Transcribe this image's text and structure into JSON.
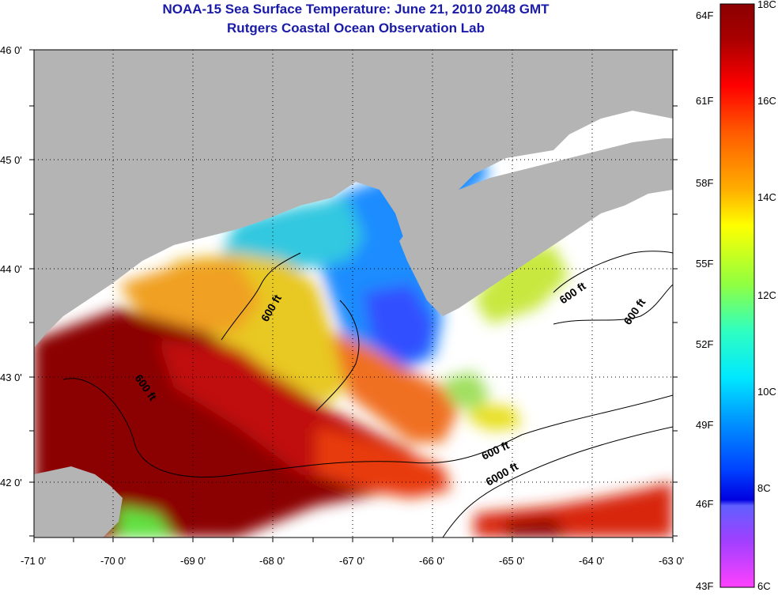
{
  "title": "NOAA-15 Sea Surface Temperature:  June 21, 2010 2048 GMT",
  "subtitle": "Rutgers Coastal Ocean Observation Lab",
  "map": {
    "lat_ticks": [
      "46 0'",
      "45 0'",
      "44 0'",
      "43 0'",
      "42 0'"
    ],
    "lon_ticks": [
      "-71 0'",
      "-70 0'",
      "-69 0'",
      "-68 0'",
      "-67 0'",
      "-66 0'",
      "-65 0'",
      "-64 0'",
      "-63 0'"
    ],
    "contour_labels": [
      "600 ft",
      "600 ft",
      "600 ft",
      "600 ft",
      "600 ft",
      "6000 ft"
    ],
    "colors": {
      "land": "#b4b4b4",
      "no_data": "#ffffff"
    }
  },
  "colorbar": {
    "fahrenheit_labels": [
      "64F",
      "61F",
      "58F",
      "55F",
      "52F",
      "49F",
      "46F",
      "43F"
    ],
    "celsius_labels": [
      "18C",
      "16C",
      "14C",
      "12C",
      "10C",
      "8C",
      "6C"
    ],
    "range_c": [
      6,
      18
    ]
  }
}
